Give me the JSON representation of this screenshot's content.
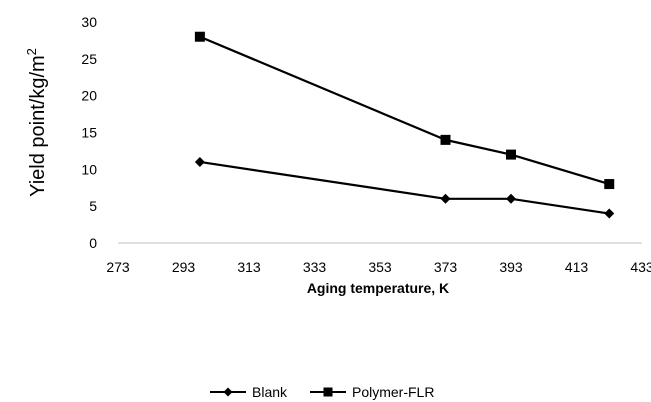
{
  "chart_data": {
    "type": "line",
    "title": "",
    "xlabel": "Aging temperature, K",
    "ylabel": "Yield point/kg/m",
    "ylabel_superscript": "2",
    "xlim": [
      273,
      433
    ],
    "ylim": [
      0,
      30
    ],
    "xticks": [
      "273",
      "293",
      "313",
      "333",
      "353",
      "373",
      "393",
      "413",
      "433"
    ],
    "yticks": [
      "0",
      "5",
      "10",
      "15",
      "20",
      "25",
      "30"
    ],
    "grid": false,
    "legend_position": "bottom-center",
    "series": [
      {
        "name": "Blank",
        "marker": "diamond",
        "color": "#000000",
        "points": [
          {
            "x": 298,
            "y": 11
          },
          {
            "x": 373,
            "y": 6
          },
          {
            "x": 393,
            "y": 6
          },
          {
            "x": 423,
            "y": 4
          }
        ]
      },
      {
        "name": "Polymer-FLR",
        "marker": "square",
        "color": "#000000",
        "points": [
          {
            "x": 298,
            "y": 28
          },
          {
            "x": 373,
            "y": 14
          },
          {
            "x": 393,
            "y": 12
          },
          {
            "x": 423,
            "y": 8
          }
        ]
      }
    ]
  }
}
